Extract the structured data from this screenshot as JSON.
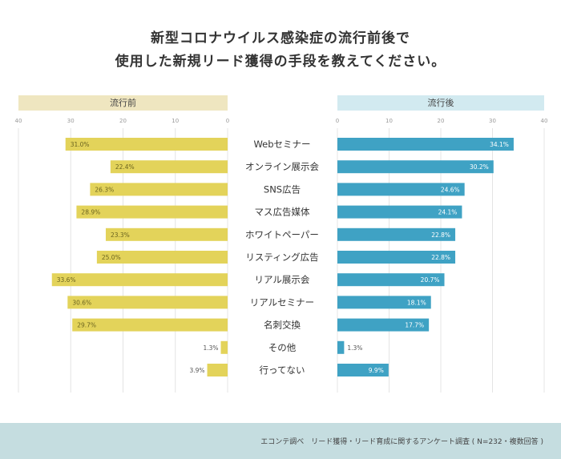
{
  "title_lines": [
    "新型コロナウイルス感染症の流行前後で",
    "使用した新規リード獲得の手段を教えてください。"
  ],
  "footer": "エコンテ調べ　リード獲得・リード育成に関するアンケート調査 ( N=232・複数回答 )",
  "chart_data": [
    {
      "type": "bar",
      "orientation": "horizontal",
      "title": "流行前",
      "direction": "right-to-left",
      "xlim": [
        0,
        40
      ],
      "ticks": [
        0,
        10,
        20,
        30,
        40
      ],
      "grid": true,
      "color": "#e3d35a",
      "categories": [
        "Webセミナー",
        "オンライン展示会",
        "SNS広告",
        "マス広告媒体",
        "ホワイトペーパー",
        "リスティング広告",
        "リアル展示会",
        "リアルセミナー",
        "名刺交換",
        "その他",
        "行ってない"
      ],
      "values": [
        31.0,
        22.4,
        26.3,
        28.9,
        23.3,
        25.0,
        33.6,
        30.6,
        29.7,
        1.3,
        3.9
      ],
      "labels": [
        "31.0%",
        "22.4%",
        "26.3%",
        "28.9%",
        "23.3%",
        "25.0%",
        "33.6%",
        "30.6%",
        "29.7%",
        "1.3%",
        "3.9%"
      ]
    },
    {
      "type": "bar",
      "orientation": "horizontal",
      "title": "流行後",
      "direction": "left-to-right",
      "xlim": [
        0,
        40
      ],
      "ticks": [
        0,
        10,
        20,
        30,
        40
      ],
      "grid": true,
      "color": "#3fa2c4",
      "categories": [
        "Webセミナー",
        "オンライン展示会",
        "SNS広告",
        "マス広告媒体",
        "ホワイトペーパー",
        "リスティング広告",
        "リアル展示会",
        "リアルセミナー",
        "名刺交換",
        "その他",
        "行ってない"
      ],
      "values": [
        34.1,
        30.2,
        24.6,
        24.1,
        22.8,
        22.8,
        20.7,
        18.1,
        17.7,
        1.3,
        9.9
      ],
      "labels": [
        "34.1%",
        "30.2%",
        "24.6%",
        "24.1%",
        "22.8%",
        "22.8%",
        "20.7%",
        "18.1%",
        "17.7%",
        "1.3%",
        "9.9%"
      ]
    }
  ],
  "colors": {
    "before_header": "#efe6c0",
    "after_header": "#d2eaf0",
    "footer_bg": "#c5dde0"
  }
}
